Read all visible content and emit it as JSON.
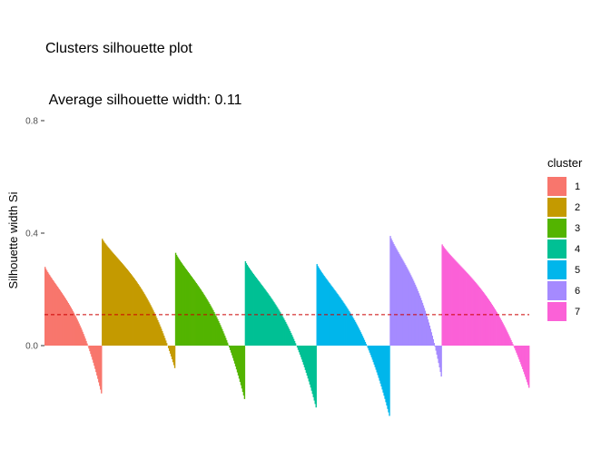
{
  "chart_data": {
    "type": "bar",
    "title": "Clusters silhouette plot",
    "subtitle": " Average silhouette width: 0.11",
    "xlabel": "",
    "ylabel": "Silhouette width Si",
    "ylim": [
      -0.26,
      0.93
    ],
    "yticks": [
      0.0,
      0.4,
      0.8
    ],
    "ytick_labels": [
      "0.0",
      "0.4",
      "0.8"
    ],
    "average_silhouette": 0.11,
    "average_line": {
      "color": "#cc0000",
      "style": "dashed"
    },
    "grid": false,
    "legend": {
      "title": "cluster",
      "position": "right"
    },
    "series": [
      {
        "name": "1",
        "color": "#F8766D",
        "max": 0.28,
        "min": -0.17,
        "n": 64
      },
      {
        "name": "2",
        "color": "#C49A00",
        "max": 0.38,
        "min": -0.08,
        "n": 82
      },
      {
        "name": "3",
        "color": "#53B400",
        "max": 0.33,
        "min": -0.19,
        "n": 78
      },
      {
        "name": "4",
        "color": "#00C094",
        "max": 0.3,
        "min": -0.22,
        "n": 80
      },
      {
        "name": "5",
        "color": "#00B6EB",
        "max": 0.29,
        "min": -0.25,
        "n": 82
      },
      {
        "name": "6",
        "color": "#A58AFF",
        "max": 0.39,
        "min": -0.11,
        "n": 58
      },
      {
        "name": "7",
        "color": "#FB61D7",
        "max": 0.36,
        "min": -0.15,
        "n": 98
      }
    ]
  }
}
